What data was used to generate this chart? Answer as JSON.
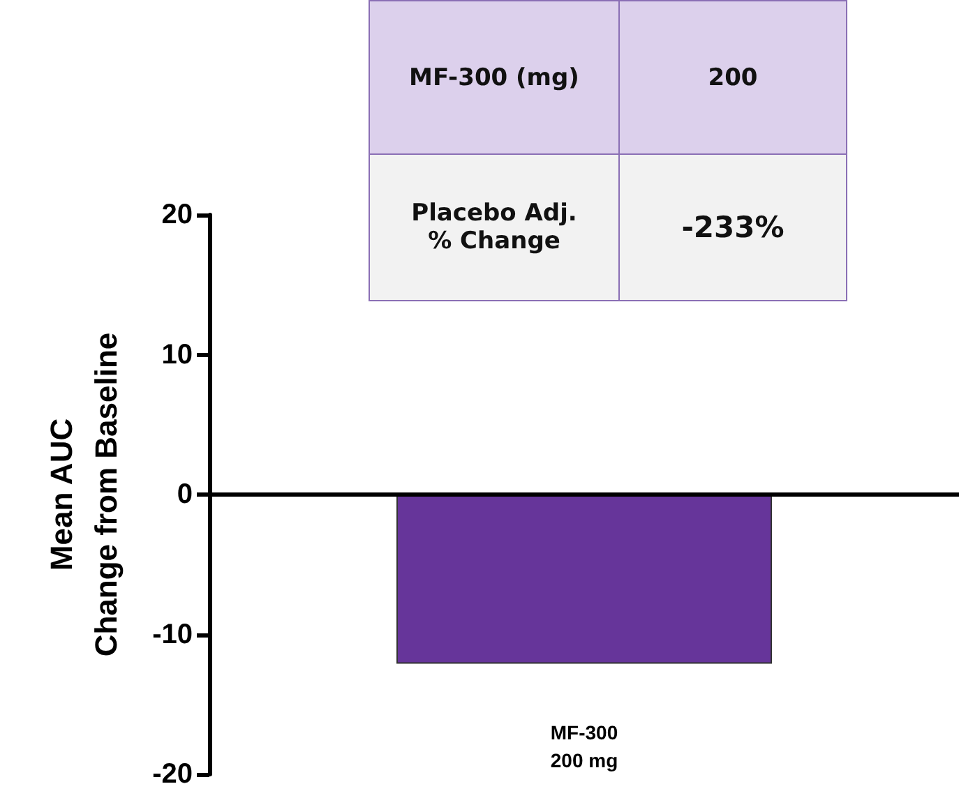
{
  "chart_data": {
    "type": "bar",
    "ylabel": "Mean AUC\nChange from Baseline",
    "categories": [
      "MF-300\n200 mg"
    ],
    "values": [
      -12.1
    ],
    "color": "#66359a",
    "ylim": [
      -20,
      20
    ],
    "yticks": [
      -20,
      -10,
      0,
      10,
      20
    ],
    "ref_lines": [
      {
        "axis": "y",
        "value": 0,
        "color": "#000000"
      }
    ],
    "annotations": [
      "MF-300 (mg)",
      "200",
      "Placebo Adj.\n% Change",
      "-233%"
    ]
  }
}
